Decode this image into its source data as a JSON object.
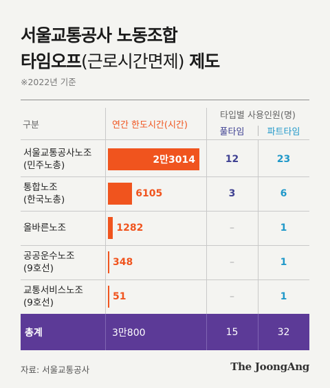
{
  "title_line1": "서울교통공사 노동조합",
  "title_line2_main": "타임오프",
  "title_line2_paren": "(근로시간면제)",
  "title_line2_tail": "제도",
  "note": "※2022년 기준",
  "headers": {
    "category": "구분",
    "annual_limit": "연간 한도시간(시간)",
    "staff": "타입별 사용인원(명)",
    "full_time": "풀타임",
    "part_time": "파트타임"
  },
  "chart_data": {
    "type": "table",
    "columns": [
      "구분",
      "연간 한도시간(시간)",
      "풀타임",
      "파트타임"
    ],
    "rows": [
      {
        "label": "서울교통공사노조\n(민주노총)",
        "hours": 23014,
        "hours_text": "2만3014",
        "full": "12",
        "part": "23"
      },
      {
        "label": "통합노조\n(한국노총)",
        "hours": 6105,
        "hours_text": "6105",
        "full": "3",
        "part": "6"
      },
      {
        "label": "올바른노조",
        "hours": 1282,
        "hours_text": "1282",
        "full": "–",
        "part": "1"
      },
      {
        "label": "공공운수노조\n(9호선)",
        "hours": 348,
        "hours_text": "348",
        "full": "–",
        "part": "1"
      },
      {
        "label": "교통서비스노조\n(9호선)",
        "hours": 51,
        "hours_text": "51",
        "full": "–",
        "part": "1"
      }
    ],
    "total": {
      "label": "총계",
      "hours_text": "3만800",
      "full": "15",
      "part": "32"
    },
    "bar_max": 23014
  },
  "colors": {
    "bar": "#f0541e",
    "full_time": "#3f4192",
    "part_time": "#1f98c9",
    "total_band": "#5c3a97"
  },
  "source": "자료: 서울교통공사",
  "logo": "The JoongAng"
}
